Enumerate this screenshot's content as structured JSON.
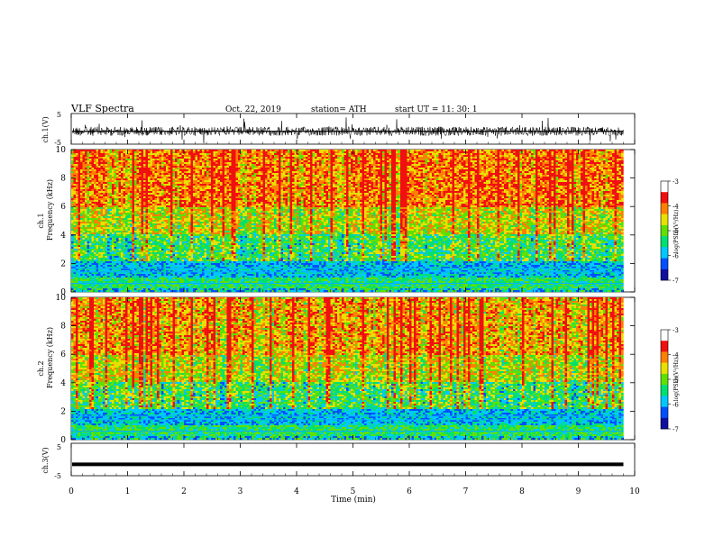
{
  "header": {
    "title": "VLF  Spectra",
    "date": "Oct. 22, 2019",
    "station": "station= ATH",
    "start": "start  UT  =    11: 30: 1"
  },
  "chart_data": [
    {
      "type": "line",
      "id": "ch1-waveform",
      "ylabel": "ch.1(V)",
      "yticks": [
        "5",
        "-5"
      ],
      "ylim": [
        -5,
        5
      ],
      "xlim": [
        0,
        10
      ],
      "description_color": "#000000"
    },
    {
      "type": "heatmap",
      "id": "ch1-spectrogram",
      "ylabel_line1": "ch.1",
      "ylabel_line2": "Frequency  (kHz)",
      "yticks": [
        "0",
        "2",
        "4",
        "6",
        "8",
        "10"
      ],
      "ylim": [
        0,
        10
      ],
      "xlim": [
        0,
        10
      ],
      "colorbar": {
        "label": "log(PSD)(V²/Hz)",
        "ticks": [
          "-3",
          "-4",
          "-5",
          "-6",
          "-7"
        ],
        "range": [
          -7,
          -3
        ]
      }
    },
    {
      "type": "heatmap",
      "id": "ch2-spectrogram",
      "ylabel_line1": "ch.2",
      "ylabel_line2": "Frequency  (kHz)",
      "yticks": [
        "0",
        "2",
        "4",
        "6",
        "8",
        "10"
      ],
      "ylim": [
        0,
        10
      ],
      "xlim": [
        0,
        10
      ],
      "colorbar": {
        "label": "log(PSD)(V²/Hz)",
        "ticks": [
          "-3",
          "-4",
          "-5",
          "-6",
          "-7"
        ],
        "range": [
          -7,
          -3
        ]
      }
    },
    {
      "type": "line",
      "id": "ch3-waveform",
      "ylabel": "ch.3(V)",
      "yticks": [
        "5",
        "-5"
      ],
      "ylim": [
        -5,
        5
      ],
      "xlim": [
        0,
        10
      ],
      "level": -1.5
    }
  ],
  "xaxis": {
    "label": "Time  (min)",
    "ticks": [
      "0",
      "1",
      "2",
      "3",
      "4",
      "5",
      "6",
      "7",
      "8",
      "9",
      "10"
    ],
    "range": [
      0,
      10
    ],
    "data_end": 9.8
  },
  "colors": {
    "colormap": [
      "#000000",
      "#1010a0",
      "#0050ff",
      "#00c8ff",
      "#00e070",
      "#60e000",
      "#e8e000",
      "#ff8000",
      "#f01010",
      "#ffffff"
    ]
  }
}
